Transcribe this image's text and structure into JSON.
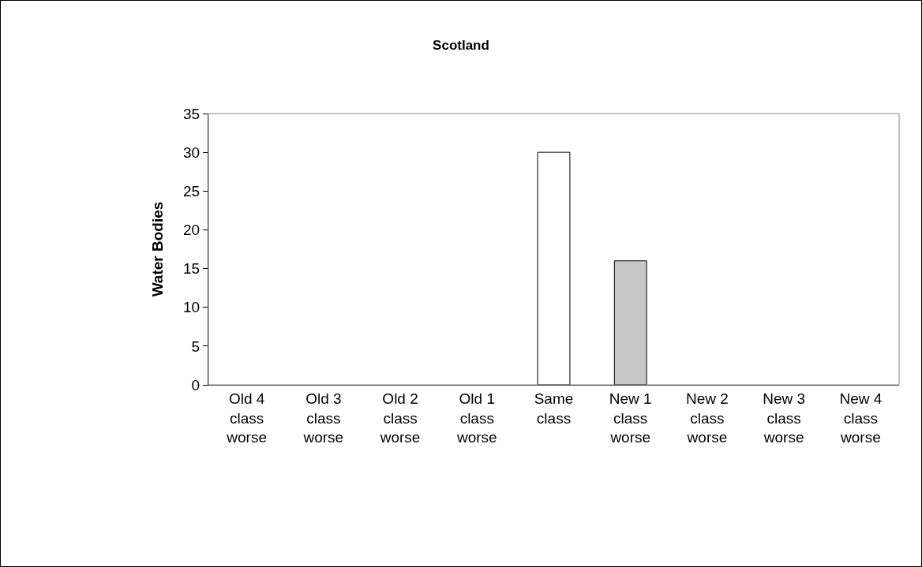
{
  "chart_data": {
    "type": "bar",
    "title": "Scotland",
    "ylabel": "Water Bodies",
    "categories": [
      "Old 4 class worse",
      "Old 3 class worse",
      "Old 2 class worse",
      "Old 1 class worse",
      "Same class",
      "New 1 class worse",
      "New 2 class worse",
      "New 3 class worse",
      "New 4 class worse"
    ],
    "values": [
      0,
      0,
      0,
      0,
      30,
      16,
      0,
      0,
      0
    ],
    "colors": [
      "#ffffff",
      "#ffffff",
      "#ffffff",
      "#ffffff",
      "#ffffff",
      "#c8c8c8",
      "#ffffff",
      "#ffffff",
      "#ffffff"
    ],
    "ylim": [
      0,
      35
    ],
    "yticks": [
      0,
      5,
      10,
      15,
      20,
      25,
      30,
      35
    ],
    "grid": false
  }
}
